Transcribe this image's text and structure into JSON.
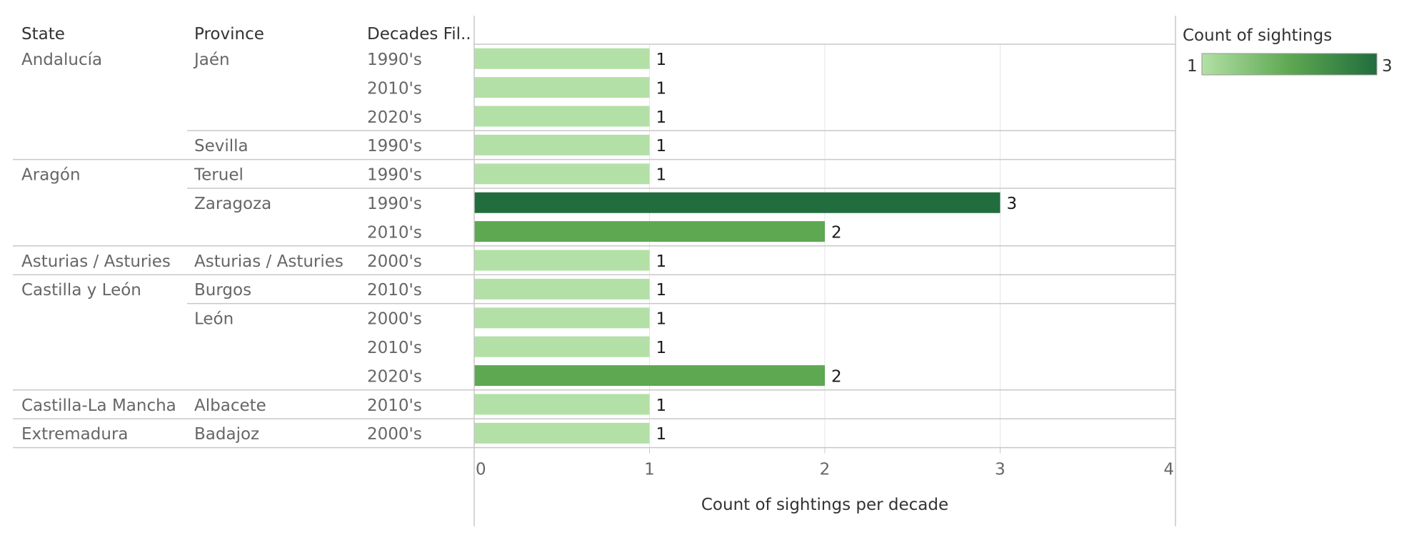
{
  "headers": {
    "state": "State",
    "province": "Province",
    "decade": "Decades Fil.."
  },
  "axis_title": "Count of sightings per decade",
  "legend": {
    "title": "Count of sightings",
    "min_label": "1",
    "max_label": "3"
  },
  "colors": {
    "low": "#b3e0a6",
    "mid": "#5ea852",
    "high": "#216d3d",
    "border": "#c8c8c8",
    "grid": "#e6e6e6"
  },
  "chart_data": {
    "type": "bar",
    "orientation": "horizontal",
    "xlim": [
      0,
      4
    ],
    "ticks": [
      "0",
      "1",
      "2",
      "3",
      "4"
    ],
    "xlabel": "Count of sightings per decade",
    "legend_placement": "top-right",
    "rows": [
      {
        "state": "Andalucía",
        "province": "Jaén",
        "decade": "1990's",
        "value": 1
      },
      {
        "state": "Andalucía",
        "province": "Jaén",
        "decade": "2010's",
        "value": 1
      },
      {
        "state": "Andalucía",
        "province": "Jaén",
        "decade": "2020's",
        "value": 1
      },
      {
        "state": "Andalucía",
        "province": "Sevilla",
        "decade": "1990's",
        "value": 1
      },
      {
        "state": "Aragón",
        "province": "Teruel",
        "decade": "1990's",
        "value": 1
      },
      {
        "state": "Aragón",
        "province": "Zaragoza",
        "decade": "1990's",
        "value": 3
      },
      {
        "state": "Aragón",
        "province": "Zaragoza",
        "decade": "2010's",
        "value": 2
      },
      {
        "state": "Asturias / Asturies",
        "province": "Asturias / Asturies",
        "decade": "2000's",
        "value": 1
      },
      {
        "state": "Castilla y León",
        "province": "Burgos",
        "decade": "2010's",
        "value": 1
      },
      {
        "state": "Castilla y León",
        "province": "León",
        "decade": "2000's",
        "value": 1
      },
      {
        "state": "Castilla y León",
        "province": "León",
        "decade": "2010's",
        "value": 1
      },
      {
        "state": "Castilla y León",
        "province": "León",
        "decade": "2020's",
        "value": 2
      },
      {
        "state": "Castilla-La Mancha",
        "province": "Albacete",
        "decade": "2010's",
        "value": 1
      },
      {
        "state": "Extremadura",
        "province": "Badajoz",
        "decade": "2000's",
        "value": 1
      }
    ]
  }
}
